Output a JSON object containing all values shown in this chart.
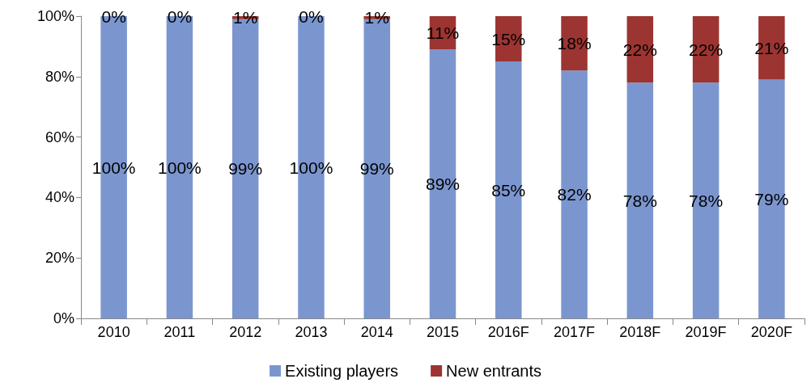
{
  "chart_data": {
    "type": "bar",
    "stacked": true,
    "categories": [
      "2010",
      "2011",
      "2012",
      "2013",
      "2014",
      "2015",
      "2016F",
      "2017F",
      "2018F",
      "2019F",
      "2020F"
    ],
    "series": [
      {
        "name": "Existing players",
        "color": "#7b96cf",
        "values": [
          100,
          100,
          99,
          100,
          99,
          89,
          85,
          82,
          78,
          78,
          79
        ],
        "value_labels": [
          "100%",
          "100%",
          "99%",
          "100%",
          "99%",
          "89%",
          "85%",
          "82%",
          "78%",
          "78%",
          "79%"
        ]
      },
      {
        "name": "New entrants",
        "color": "#9c3431",
        "values": [
          0,
          0,
          1,
          0,
          1,
          11,
          15,
          18,
          22,
          22,
          21
        ],
        "value_labels": [
          "0%",
          "0%",
          "1%",
          "0%",
          "1%",
          "11%",
          "15%",
          "18%",
          "22%",
          "22%",
          "21%"
        ]
      }
    ],
    "ylim": [
      0,
      100
    ],
    "yticks": [
      {
        "value": 0,
        "label": "0%"
      },
      {
        "value": 20,
        "label": "20%"
      },
      {
        "value": 40,
        "label": "40%"
      },
      {
        "value": 60,
        "label": "60%"
      },
      {
        "value": 80,
        "label": "80%"
      },
      {
        "value": 100,
        "label": "100%"
      }
    ],
    "grid": false,
    "legend": "bottom"
  }
}
